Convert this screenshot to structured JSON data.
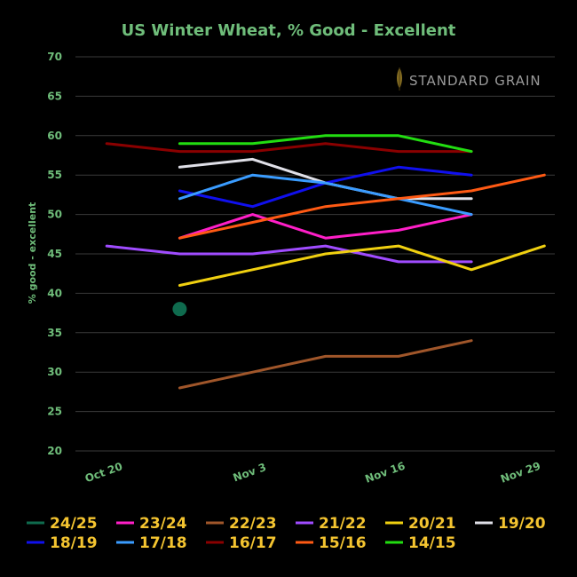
{
  "chart_data": {
    "type": "line",
    "title": "US Winter Wheat, % Good - Excellent",
    "ylabel": "% good - excellent",
    "xlabel": "",
    "ylim": [
      20,
      70
    ],
    "yticks": [
      20,
      25,
      30,
      35,
      40,
      45,
      50,
      55,
      60,
      65,
      70
    ],
    "xticks": [
      {
        "label": "Oct 20",
        "x": 0
      },
      {
        "label": "Nov 3",
        "x": 14
      },
      {
        "label": "Nov 16",
        "x": 27
      },
      {
        "label": "Nov 29",
        "x": 40
      }
    ],
    "xlim": [
      -3,
      43
    ],
    "grid": true,
    "legend_position": "bottom",
    "watermark": "STANDARD GRAIN",
    "series": [
      {
        "name": "24/25",
        "color": "#0f6b4e",
        "marker": true,
        "points": [
          [
            7,
            38
          ]
        ]
      },
      {
        "name": "23/24",
        "color": "#ff1fc8",
        "points": [
          [
            7,
            47
          ],
          [
            14,
            50
          ],
          [
            21,
            47
          ],
          [
            28,
            48
          ],
          [
            35,
            50
          ]
        ]
      },
      {
        "name": "22/23",
        "color": "#a0562a",
        "points": [
          [
            7,
            28
          ],
          [
            14,
            30
          ],
          [
            21,
            32
          ],
          [
            28,
            32
          ],
          [
            35,
            34
          ]
        ]
      },
      {
        "name": "21/22",
        "color": "#a04cff",
        "points": [
          [
            0,
            46
          ],
          [
            7,
            45
          ],
          [
            14,
            45
          ],
          [
            21,
            46
          ],
          [
            28,
            44
          ],
          [
            35,
            44
          ]
        ]
      },
      {
        "name": "20/21",
        "color": "#f0d010",
        "points": [
          [
            7,
            41
          ],
          [
            14,
            43
          ],
          [
            21,
            45
          ],
          [
            28,
            46
          ],
          [
            35,
            43
          ],
          [
            42,
            46
          ]
        ]
      },
      {
        "name": "19/20",
        "color": "#e0e0e8",
        "points": [
          [
            7,
            56
          ],
          [
            14,
            57
          ],
          [
            21,
            54
          ],
          [
            28,
            52
          ],
          [
            35,
            52
          ]
        ]
      },
      {
        "name": "18/19",
        "color": "#1010ee",
        "points": [
          [
            7,
            53
          ],
          [
            14,
            51
          ],
          [
            21,
            54
          ],
          [
            28,
            56
          ],
          [
            35,
            55
          ]
        ]
      },
      {
        "name": "17/18",
        "color": "#3a9cff",
        "points": [
          [
            7,
            52
          ],
          [
            14,
            55
          ],
          [
            21,
            54
          ],
          [
            28,
            52
          ],
          [
            35,
            50
          ]
        ]
      },
      {
        "name": "16/17",
        "color": "#8a0000",
        "points": [
          [
            0,
            59
          ],
          [
            7,
            58
          ],
          [
            14,
            58
          ],
          [
            21,
            59
          ],
          [
            28,
            58
          ],
          [
            35,
            58
          ]
        ]
      },
      {
        "name": "15/16",
        "color": "#ff5a14",
        "points": [
          [
            7,
            47
          ],
          [
            14,
            49
          ],
          [
            21,
            51
          ],
          [
            28,
            52
          ],
          [
            35,
            53
          ],
          [
            42,
            55
          ]
        ]
      },
      {
        "name": "14/15",
        "color": "#22dd11",
        "points": [
          [
            7,
            59
          ],
          [
            14,
            59
          ],
          [
            21,
            60
          ],
          [
            28,
            60
          ],
          [
            35,
            58
          ]
        ]
      }
    ]
  }
}
